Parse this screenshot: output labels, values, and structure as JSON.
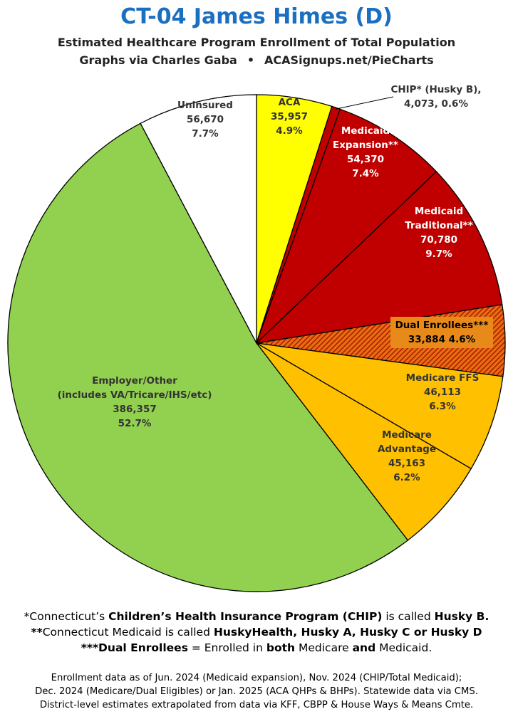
{
  "header": {
    "title": "CT-04 James Himes (D)",
    "subtitle": "Estimated Healthcare Program Enrollment of Total Population",
    "credit_left": "Graphs via Charles Gaba",
    "credit_bullet": "•",
    "credit_right": "ACASignups.net/PieCharts"
  },
  "chart_data": {
    "type": "pie",
    "start": "12 o'clock, clockwise",
    "slices": [
      {
        "label": "ACA",
        "value": 35957,
        "pct": "4.9%",
        "value_text": "35,957",
        "color": "#ffff00",
        "text_color": "#333333"
      },
      {
        "label": "CHIP* (Husky B),",
        "value": 4073,
        "pct": "0.6%",
        "value_text": "4,073, 0.6%",
        "color": "#c00000",
        "text_color": "#333333",
        "callout": true
      },
      {
        "label": "Medicaid Expansion**",
        "value": 54370,
        "pct": "7.4%",
        "value_text": "54,370",
        "color": "#c00000",
        "text_color": "#ffffff"
      },
      {
        "label": "Medicaid Traditional**",
        "value": 70780,
        "pct": "9.7%",
        "value_text": "70,780",
        "color": "#c00000",
        "text_color": "#ffffff"
      },
      {
        "label": "Dual Enrollees***",
        "value": 33884,
        "pct": "4.6%",
        "value_text": "33,884 4.6%",
        "color": "#c00000",
        "pattern": "hatched-orange",
        "text_color": "#000000"
      },
      {
        "label": "Medicare FFS",
        "value": 46113,
        "pct": "6.3%",
        "value_text": "46,113",
        "color": "#ffc000",
        "text_color": "#333333"
      },
      {
        "label": "Medicare Advantage",
        "value": 45163,
        "pct": "6.2%",
        "value_text": "45,163",
        "color": "#ffc000",
        "text_color": "#333333"
      },
      {
        "label": "Employer/Other (includes VA/Tricare/IHS/etc)",
        "value": 386357,
        "pct": "52.7%",
        "value_text": "386,357",
        "color": "#92d050",
        "text_color": "#333333"
      },
      {
        "label": "Uninsured",
        "value": 56670,
        "pct": "7.7%",
        "value_text": "56,670",
        "color": "#ffffff",
        "text_color": "#333333"
      }
    ],
    "label_lines": [
      [
        "ACA",
        "35,957",
        "4.9%"
      ],
      [
        "CHIP* (Husky B),",
        "4,073, 0.6%"
      ],
      [
        "Medicaid",
        "Expansion**",
        "54,370",
        "7.4%"
      ],
      [
        "Medicaid",
        "Traditional**",
        "70,780",
        "9.7%"
      ],
      [
        "Dual Enrollees***",
        "33,884 4.6%"
      ],
      [
        "Medicare FFS",
        "46,113",
        "6.3%"
      ],
      [
        "Medicare",
        "Advantage",
        "45,163",
        "6.2%"
      ],
      [
        "Employer/Other",
        "(includes VA/Tricare/IHS/etc)",
        "386,357",
        "52.7%"
      ],
      [
        "Uninsured",
        "56,670",
        "7.7%"
      ]
    ]
  },
  "notes": {
    "line1_a": "*Connecticut’s ",
    "line1_b": "Children’s Health Insurance Program (CHIP)",
    "line1_c": " is called ",
    "line1_d": "Husky B.",
    "line2_a": "**",
    "line2_b": "Connecticut Medicaid is called ",
    "line2_c": "HuskyHealth, Husky A, Husky C or Husky D",
    "line3_a": "***Dual Enrollees",
    "line3_b": " = Enrolled in ",
    "line3_c": "both",
    "line3_d": " Medicare ",
    "line3_e": "and",
    "line3_f": " Medicaid."
  },
  "source": {
    "line1": "Enrollment data as of Jun. 2024 (Medicaid expansion), Nov. 2024 (CHIP/Total Medicaid);",
    "line2": "Dec. 2024 (Medicare/Dual Eligibles) or Jan. 2025 (ACA QHPs & BHPs). Statewide data via CMS.",
    "line3": "District-level estimates extrapolated from data via KFF, CBPP & House Ways & Means Cmte."
  }
}
